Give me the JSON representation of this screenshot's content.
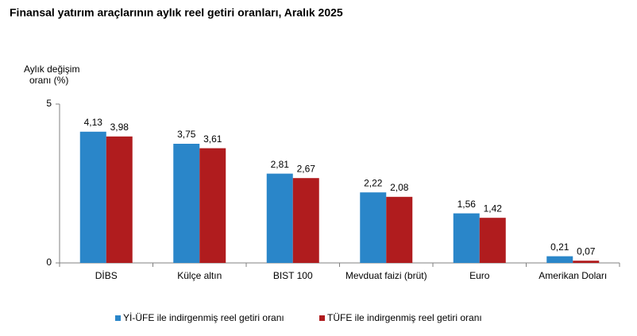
{
  "chart_data": {
    "type": "bar",
    "title": "Finansal yatırım araçlarının aylık reel getiri oranları, Aralık 2025",
    "y_label": [
      "Aylık değişim",
      "oranı (%)"
    ],
    "categories": [
      "DİBS",
      "Külçe altın",
      "BIST 100",
      "Mevduat faizi (brüt)",
      "Euro",
      "Amerikan Doları"
    ],
    "series": [
      {
        "name": "Yİ-ÜFE ile indirgenmiş reel getiri oranı",
        "color": "#2a86c9",
        "values": [
          4.13,
          3.75,
          2.81,
          2.22,
          1.56,
          0.21
        ],
        "value_labels": [
          "4,13",
          "3,75",
          "2,81",
          "2,22",
          "1,56",
          "0,21"
        ]
      },
      {
        "name": "TÜFE ile indirgenmiş reel getiri oranı",
        "color": "#b01c1e",
        "values": [
          3.98,
          3.61,
          2.67,
          2.08,
          1.42,
          0.07
        ],
        "value_labels": [
          "3,98",
          "3,61",
          "2,67",
          "2,08",
          "1,42",
          "0,07"
        ]
      }
    ],
    "ylim": [
      0,
      5
    ],
    "yticks": [
      0,
      5
    ],
    "grid": false
  }
}
